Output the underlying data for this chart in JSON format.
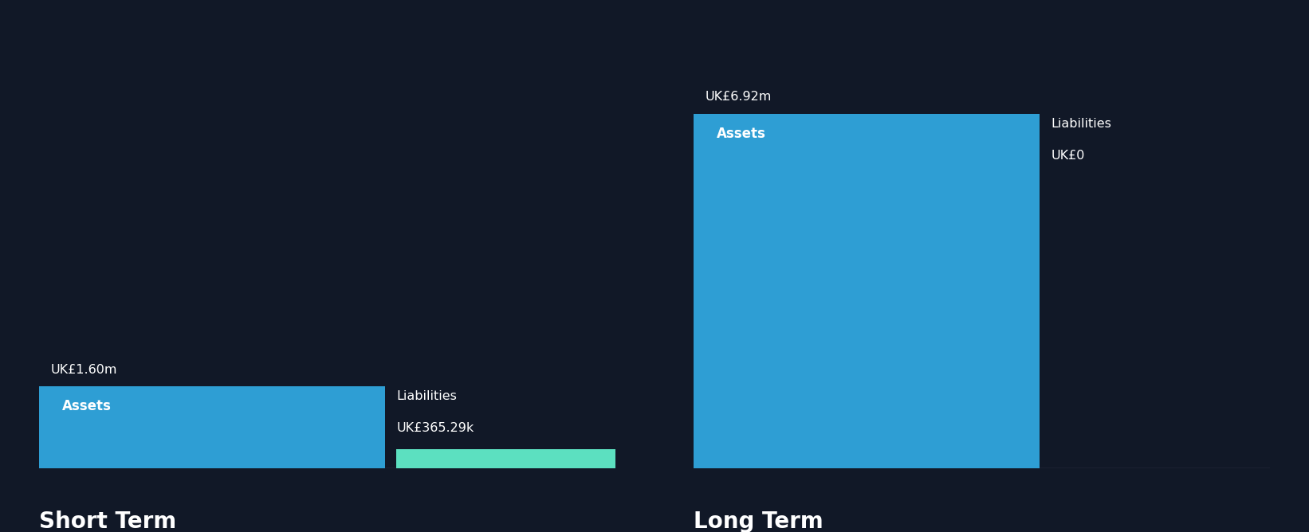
{
  "background_color": "#111827",
  "bar_color_assets": "#2E9ED4",
  "bar_color_liabilities": "#5CE0C0",
  "text_color": "#ffffff",
  "short_term": {
    "assets_value": 1.6,
    "liabilities_value": 0.36529,
    "assets_label": "UK£1.60m",
    "liabilities_label": "UK£365.29k",
    "assets_text": "Assets",
    "liabilities_text": "Liabilities",
    "section_label": "Short Term"
  },
  "long_term": {
    "assets_value": 6.92,
    "liabilities_value": 0.0,
    "assets_label": "UK£6.92m",
    "liabilities_label": "UK£0",
    "assets_text": "Assets",
    "liabilities_text": "Liabilities",
    "section_label": "Long Term"
  },
  "max_value": 6.92,
  "figsize": [
    16.42,
    6.68
  ],
  "dpi": 100
}
